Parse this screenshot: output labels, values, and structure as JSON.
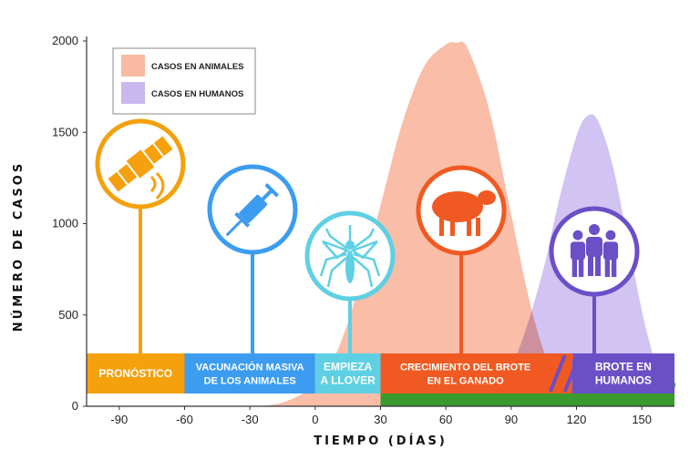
{
  "chart_data": {
    "type": "area",
    "xlabel": "TIEMPO (DÍAS)",
    "ylabel": "NÚMERO  DE  CASOS",
    "xlim": [
      -105,
      165
    ],
    "ylim": [
      0,
      2000
    ],
    "x_ticks": [
      -90,
      -60,
      -30,
      0,
      30,
      60,
      90,
      120,
      150
    ],
    "y_ticks": [
      0,
      500,
      1000,
      1500,
      2000
    ],
    "legend_position": "top-left",
    "series": [
      {
        "name": "CASOS EN ANIMALES",
        "color": "#f9b9a3",
        "x": [
          -30,
          -15,
          0,
          10,
          20,
          30,
          40,
          50,
          60,
          65,
          70,
          80,
          90,
          100,
          110,
          120
        ],
        "y": [
          0,
          20,
          120,
          300,
          650,
          1100,
          1550,
          1860,
          1980,
          1990,
          1960,
          1620,
          1050,
          500,
          150,
          0
        ]
      },
      {
        "name": "CASOS EN HUMANOS",
        "color": "#c9b8f0",
        "x": [
          75,
          85,
          95,
          105,
          112,
          120,
          125,
          130,
          137,
          145,
          152,
          160,
          165
        ],
        "y": [
          0,
          100,
          360,
          760,
          1130,
          1480,
          1590,
          1560,
          1300,
          820,
          420,
          100,
          0
        ]
      }
    ],
    "phases": [
      {
        "label": [
          "PRONÓSTICO"
        ],
        "x_start": -105,
        "x_end": -60,
        "color": "#f5a00d",
        "icon": "satellite-icon"
      },
      {
        "label": [
          "VACUNACIÓN MASIVA",
          "DE LOS ANIMALES"
        ],
        "x_start": -60,
        "x_end": 0,
        "color": "#3c9cf0",
        "icon": "syringe-icon"
      },
      {
        "label": [
          "EMPIEZA",
          "A LLOVER"
        ],
        "x_start": 0,
        "x_end": 30,
        "color": "#5fd0e3",
        "icon": "mosquito-icon"
      },
      {
        "label": [
          "CRECIMIENTO DEL BROTE",
          "EN EL GANADO"
        ],
        "x_start": 30,
        "x_end": 118,
        "color": "#f05a22",
        "icon": "sheep-icon"
      },
      {
        "label": [
          "BROTE EN",
          "HUMANOS"
        ],
        "x_start": 118,
        "x_end": 165,
        "color": "#6a4fc7",
        "icon": "people-icon"
      }
    ],
    "grass": {
      "x_start": 30,
      "x_end": 165,
      "color": "#3a9a2e"
    }
  }
}
